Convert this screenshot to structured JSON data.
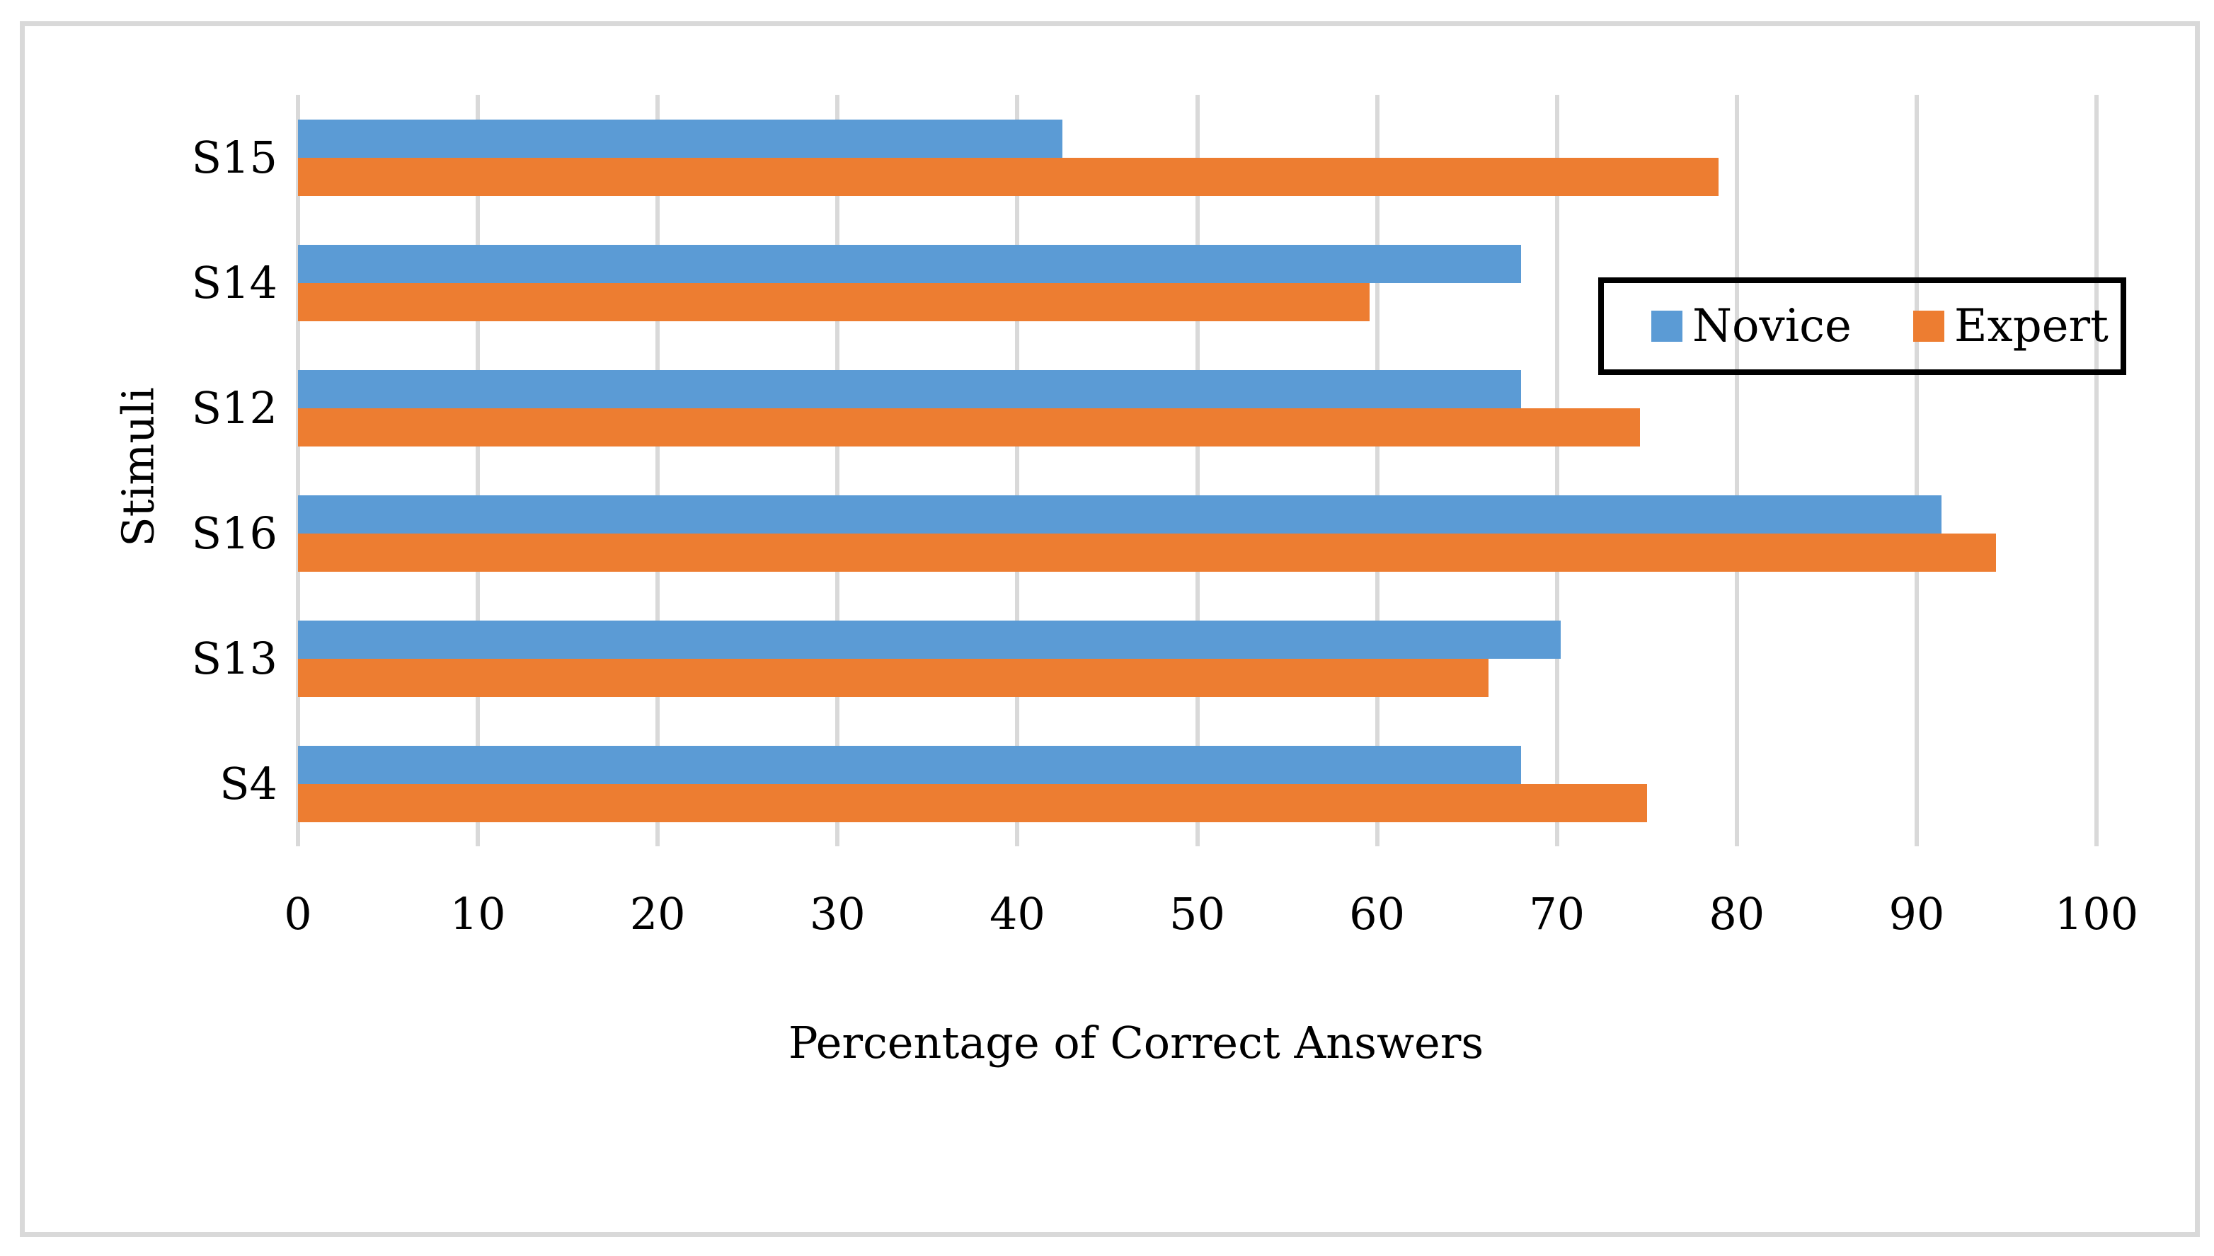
{
  "chart_data": {
    "type": "bar",
    "orientation": "horizontal",
    "title": "",
    "categories": [
      "S15",
      "S14",
      "S12",
      "S16",
      "S13",
      "S4"
    ],
    "series": [
      {
        "name": "Novice",
        "color": "#5B9BD5",
        "values": [
          42.5,
          68,
          68,
          91.4,
          70.2,
          68
        ]
      },
      {
        "name": "Expert",
        "color": "#ED7D31",
        "values": [
          79,
          59.6,
          74.6,
          94.4,
          66.2,
          75
        ]
      }
    ],
    "xlabel": "Percentage of Correct Answers",
    "ylabel": "Stimuli",
    "xlim": [
      0,
      100
    ],
    "xticks": [
      0,
      10,
      20,
      30,
      40,
      50,
      60,
      70,
      80,
      90,
      100
    ],
    "grid": "vertical-only",
    "gridline_color": "#D9D9D9",
    "frame_color": "#D9D9D9",
    "legend_position": "inside-upper-right",
    "legend_border_color": "#000000"
  },
  "axes": {
    "x_title": "Percentage of Correct Answers",
    "y_title": "Stimuli"
  },
  "legend": {
    "items": [
      {
        "label": "Novice",
        "color": "#5B9BD5"
      },
      {
        "label": "Expert",
        "color": "#ED7D31"
      }
    ]
  }
}
